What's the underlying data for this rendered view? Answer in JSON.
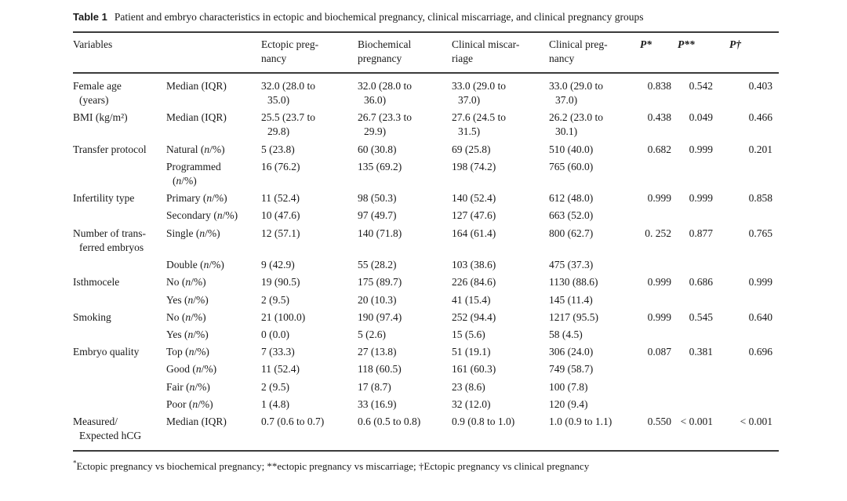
{
  "caption": {
    "label": "Table 1",
    "text": "Patient and embryo characteristics in ectopic and biochemical pregnancy, clinical miscarriage, and clinical pregnancy groups"
  },
  "table": {
    "columns": [
      {
        "label": "Variables"
      },
      {
        "label": ""
      },
      {
        "label": "Ectopic preg-\nnancy"
      },
      {
        "label": "Biochemical\npregnancy"
      },
      {
        "label": "Clinical miscar-\nriage"
      },
      {
        "label": "Clinical preg-\nnancy"
      },
      {
        "label": "P*"
      },
      {
        "label": "P**"
      },
      {
        "label": "P†"
      }
    ],
    "rows": [
      [
        "Female age\n(years)",
        "Median (IQR)",
        "32.0 (28.0 to\n35.0)",
        "32.0 (28.0 to\n36.0)",
        "33.0 (29.0 to\n37.0)",
        "33.0 (29.0 to\n37.0)",
        "0.838",
        "0.542",
        "0.403"
      ],
      [
        "BMI (kg/m²)",
        "Median (IQR)",
        "25.5 (23.7 to\n29.8)",
        "26.7 (23.3 to\n29.9)",
        "27.6 (24.5 to\n31.5)",
        "26.2 (23.0 to\n30.1)",
        "0.438",
        "0.049",
        "0.466"
      ],
      [
        "Transfer protocol",
        "Natural (n/%)",
        "5 (23.8)",
        "60 (30.8)",
        "69 (25.8)",
        "510 (40.0)",
        "0.682",
        "0.999",
        "0.201"
      ],
      [
        "",
        "Programmed\n(n/%)",
        "16 (76.2)",
        "135 (69.2)",
        "198 (74.2)",
        "765 (60.0)",
        "",
        "",
        ""
      ],
      [
        "Infertility type",
        "Primary (n/%)",
        "11 (52.4)",
        "98 (50.3)",
        "140 (52.4)",
        "612 (48.0)",
        "0.999",
        "0.999",
        "0.858"
      ],
      [
        "",
        "Secondary (n/%)",
        "10 (47.6)",
        "97 (49.7)",
        "127 (47.6)",
        "663 (52.0)",
        "",
        "",
        ""
      ],
      [
        "Number of trans-\nferred embryos",
        "Single (n/%)",
        "12 (57.1)",
        "140 (71.8)",
        "164 (61.4)",
        "800 (62.7)",
        "0. 252",
        "0.877",
        "0.765"
      ],
      [
        "",
        "Double (n/%)",
        "9 (42.9)",
        "55 (28.2)",
        "103 (38.6)",
        "475 (37.3)",
        "",
        "",
        ""
      ],
      [
        "Isthmocele",
        "No (n/%)",
        "19 (90.5)",
        "175 (89.7)",
        "226 (84.6)",
        "1130 (88.6)",
        "0.999",
        "0.686",
        "0.999"
      ],
      [
        "",
        "Yes (n/%)",
        "2 (9.5)",
        "20 (10.3)",
        "41 (15.4)",
        "145 (11.4)",
        "",
        "",
        ""
      ],
      [
        "Smoking",
        "No (n/%)",
        "21 (100.0)",
        "190 (97.4)",
        "252 (94.4)",
        "1217 (95.5)",
        "0.999",
        "0.545",
        "0.640"
      ],
      [
        "",
        "Yes (n/%)",
        "0 (0.0)",
        "5 (2.6)",
        "15 (5.6)",
        "58 (4.5)",
        "",
        "",
        ""
      ],
      [
        "Embryo quality",
        "Top (n/%)",
        "7 (33.3)",
        "27 (13.8)",
        "51 (19.1)",
        "306 (24.0)",
        "0.087",
        "0.381",
        "0.696"
      ],
      [
        "",
        "Good (n/%)",
        "11 (52.4)",
        "118 (60.5)",
        "161 (60.3)",
        "749 (58.7)",
        "",
        "",
        ""
      ],
      [
        "",
        "Fair (n/%)",
        "2 (9.5)",
        "17 (8.7)",
        "23 (8.6)",
        "100 (7.8)",
        "",
        "",
        ""
      ],
      [
        "",
        "Poor (n/%)",
        "1 (4.8)",
        "33 (16.9)",
        "32 (12.0)",
        "120 (9.4)",
        "",
        "",
        ""
      ],
      [
        "Measured/\nExpected hCG",
        "Median (IQR)",
        "0.7 (0.6 to 0.7)",
        "0.6 (0.5 to 0.8)",
        "0.9 (0.8 to 1.0)",
        "1.0 (0.9 to 1.1)",
        "0.550",
        "< 0.001",
        "< 0.001"
      ]
    ]
  },
  "footnote": {
    "marker": "*",
    "text": "Ectopic pregnancy vs biochemical pregnancy; **ectopic pregnancy vs miscarriage; †Ectopic pregnancy vs clinical pregnancy"
  },
  "colors": {
    "background": "#ffffff",
    "text": "#1a1a1a",
    "rule": "#3b3b3b"
  }
}
